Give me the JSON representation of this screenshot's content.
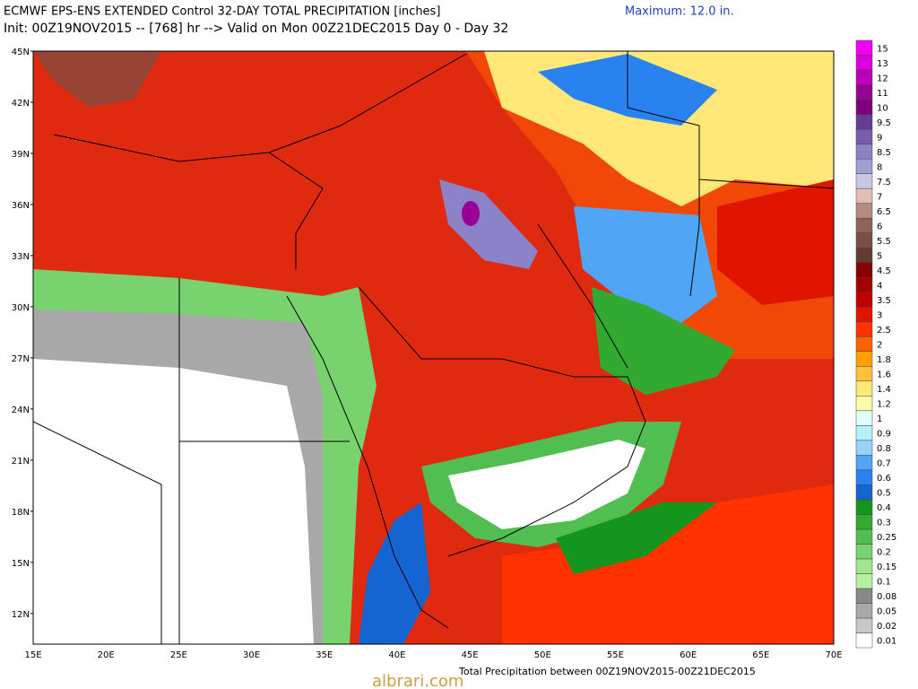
{
  "header": {
    "title": "ECMWF EPS-ENS EXTENDED Control 32-DAY TOTAL PRECIPITATION [inches]",
    "maximum": "Maximum:  12.0 in.",
    "subtitle": "Init: 00Z19NOV2015 -- [768] hr --> Valid on Mon 00Z21DEC2015  Day 0 - Day 32"
  },
  "map": {
    "lat_labels": [
      "45N",
      "42N",
      "39N",
      "36N",
      "33N",
      "30N",
      "27N",
      "24N",
      "21N",
      "18N",
      "15N",
      "12N"
    ],
    "lon_labels": [
      "15E",
      "20E",
      "25E",
      "30E",
      "35E",
      "40E",
      "45E",
      "50E",
      "55E",
      "60E",
      "65E",
      "70E"
    ]
  },
  "colorbar": {
    "labels": [
      "0.01",
      "0.02",
      "0.05",
      "0.08",
      "0.1",
      "0.15",
      "0.2",
      "0.25",
      "0.3",
      "0.4",
      "0.5",
      "0.6",
      "0.7",
      "0.8",
      "0.9",
      "1",
      "1.2",
      "1.4",
      "1.6",
      "1.8",
      "2",
      "2.5",
      "3",
      "3.5",
      "4",
      "4.5",
      "5",
      "5.5",
      "6",
      "6.5",
      "7",
      "7.5",
      "8",
      "8.5",
      "9",
      "9.5",
      "10",
      "11",
      "12",
      "13",
      "15"
    ],
    "colors": [
      "#ffffff",
      "#c8c8c8",
      "#a8a8a8",
      "#888888",
      "#b4f0a0",
      "#a0e68c",
      "#78d26e",
      "#50be50",
      "#32aa32",
      "#14961e",
      "#1464d2",
      "#2882f0",
      "#50a5f5",
      "#96d2fa",
      "#b4f0fa",
      "#e1ffff",
      "#fffaaa",
      "#ffe878",
      "#ffc03c",
      "#ffa000",
      "#ff6000",
      "#ff3200",
      "#e11400",
      "#c00000",
      "#a50000",
      "#870000",
      "#643b32",
      "#785046",
      "#8c645a",
      "#b48c82",
      "#e1beb4",
      "#c8c8e6",
      "#a0a0d2",
      "#8c82c8",
      "#7a5aaa",
      "#643c96",
      "#7d0078",
      "#9b0096",
      "#be00be",
      "#dc00dc",
      "#f000f0"
    ]
  },
  "footer": "Total Precipitation between 00Z19NOV2015-00Z21DEC2015",
  "watermark": "albrari.com"
}
